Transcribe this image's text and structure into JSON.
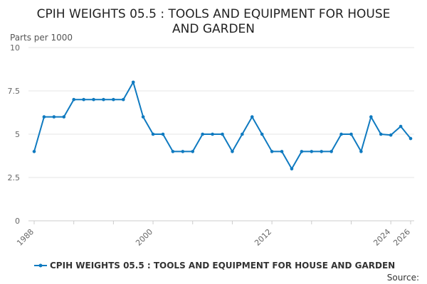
{
  "colors": {
    "series": "#0f7ac0",
    "grid": "#e6e6e6",
    "axis": "#cccccc"
  },
  "chart_data": {
    "type": "line",
    "title": "CPIH WEIGHTS 05.5 : TOOLS AND EQUIPMENT FOR HOUSE AND GARDEN",
    "title_lines": [
      "CPIH WEIGHTS 05.5 : TOOLS AND EQUIPMENT FOR HOUSE",
      "AND GARDEN"
    ],
    "ylabel": "Parts per 1000",
    "xlabel": "",
    "ylim": [
      0,
      10
    ],
    "yticks": [
      0,
      2.5,
      5,
      7.5,
      10
    ],
    "ytick_labels": [
      "0",
      "2.5",
      "5",
      "7.5",
      "10"
    ],
    "xlim": [
      1988,
      2026
    ],
    "xtick_labels": [
      "1988",
      "2000",
      "2012",
      "2024",
      "2026"
    ],
    "grid": true,
    "legend_position": "bottom",
    "source_label": "Source:",
    "series": [
      {
        "name": "CPIH WEIGHTS 05.5 : TOOLS AND EQUIPMENT FOR HOUSE AND GARDEN",
        "x": [
          1988,
          1989,
          1990,
          1991,
          1992,
          1993,
          1994,
          1995,
          1996,
          1997,
          1998,
          1999,
          2000,
          2001,
          2002,
          2003,
          2004,
          2005,
          2006,
          2007,
          2008,
          2009,
          2010,
          2011,
          2012,
          2013,
          2014,
          2015,
          2016,
          2017,
          2018,
          2019,
          2020,
          2021,
          2022,
          2023,
          2024,
          2025,
          2026
        ],
        "values": [
          4,
          6,
          6,
          6,
          7,
          7,
          7,
          7,
          7,
          7,
          8,
          6,
          5,
          5,
          4,
          4,
          4,
          5,
          5,
          5,
          4,
          5,
          6,
          5,
          4,
          4,
          3,
          4,
          4,
          4,
          4,
          5,
          5,
          4,
          6,
          5,
          4.95,
          5.45,
          4.75
        ]
      }
    ]
  }
}
